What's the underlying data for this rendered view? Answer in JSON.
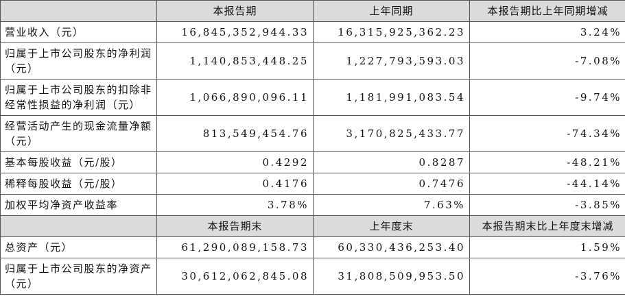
{
  "table": {
    "sections": [
      {
        "header": [
          "",
          "本报告期",
          "上年同期",
          "本报告期比上年同期增减"
        ],
        "rows": [
          [
            "营业收入（元）",
            "16,845,352,944.33",
            "16,315,925,362.23",
            "3.24%"
          ],
          [
            "归属于上市公司股东的净利润（元）",
            "1,140,853,448.25",
            "1,227,793,593.03",
            "-7.08%"
          ],
          [
            "归属于上市公司股东的扣除非经常性损益的净利润（元）",
            "1,066,890,096.11",
            "1,181,991,083.54",
            "-9.74%"
          ],
          [
            "经营活动产生的现金流量净额（元）",
            "813,549,454.76",
            "3,170,825,433.77",
            "-74.34%"
          ],
          [
            "基本每股收益（元/股）",
            "0.4292",
            "0.8287",
            "-48.21%"
          ],
          [
            "稀释每股收益（元/股）",
            "0.4176",
            "0.7476",
            "-44.14%"
          ],
          [
            "加权平均净资产收益率",
            "3.78%",
            "7.63%",
            "-3.85%"
          ]
        ]
      },
      {
        "header": [
          "",
          "本报告期末",
          "上年度末",
          "本报告期末比上年度末增减"
        ],
        "rows": [
          [
            "总资产（元）",
            "61,290,089,158.73",
            "60,330,436,253.40",
            "1.59%"
          ],
          [
            "归属于上市公司股东的净资产（元）",
            "30,612,062,845.08",
            "31,808,509,953.50",
            "-3.76%"
          ]
        ]
      }
    ]
  }
}
